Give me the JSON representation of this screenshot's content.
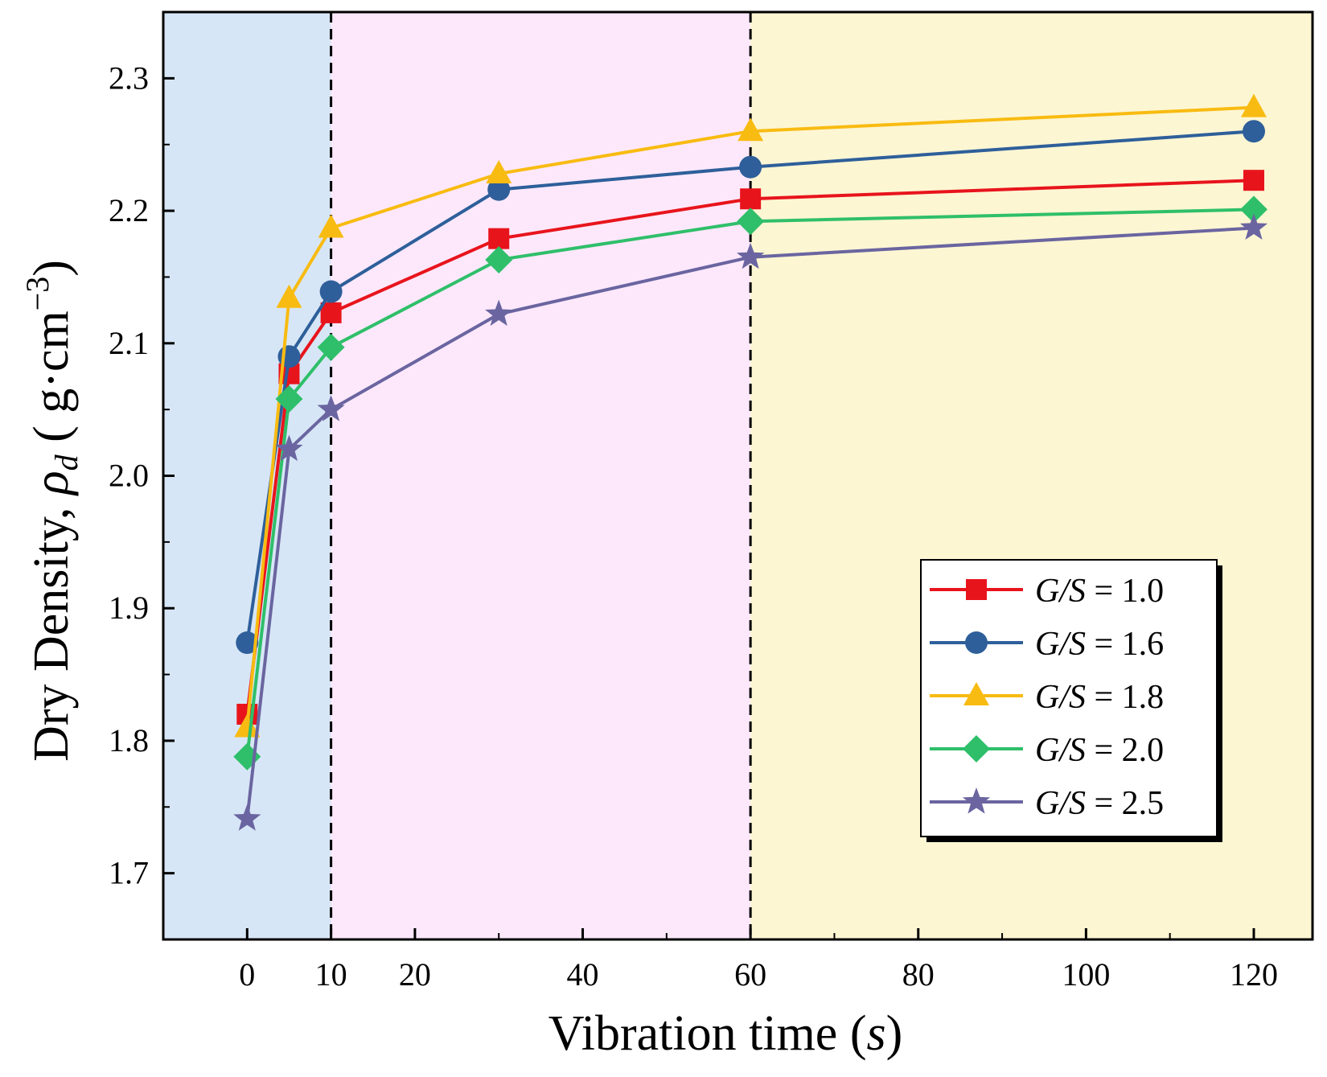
{
  "chart_data": {
    "type": "line",
    "title": "",
    "xlabel": "Vibration time (s)",
    "xlabel_main": "Vibration time (",
    "xlabel_unit": "s",
    "xlabel_close": ")",
    "ylabel": "Dry Density, ρd ( g·cm−3)",
    "ylabel_main": "Dry Density, ",
    "ylabel_symbol": "ρ",
    "ylabel_sub": "d",
    "ylabel_unit": " ( g·cm",
    "ylabel_exp": "−3",
    "ylabel_close": ")",
    "xlim": [
      -10,
      127
    ],
    "ylim": [
      1.65,
      2.35
    ],
    "xticks": [
      0,
      10,
      20,
      40,
      60,
      80,
      100,
      120
    ],
    "xtick_labels": [
      "0",
      "10",
      "20",
      "40",
      "60",
      "80",
      "100",
      "120"
    ],
    "yticks": [
      1.7,
      1.8,
      1.9,
      2.0,
      2.1,
      2.2,
      2.3
    ],
    "ytick_labels": [
      "1.7",
      "1.8",
      "1.9",
      "2.0",
      "2.1",
      "2.2",
      "2.3"
    ],
    "grid": false,
    "legend_position": "bottom-right",
    "regions": [
      {
        "x0": -10,
        "x1": 10,
        "color": "#d7e6f6"
      },
      {
        "x0": 10,
        "x1": 60,
        "color": "#fde8fb"
      },
      {
        "x0": 60,
        "x1": 127,
        "color": "#fdf6d3"
      }
    ],
    "divider_lines": [
      10,
      60
    ],
    "x": [
      0,
      5,
      10,
      30,
      60,
      120
    ],
    "series": [
      {
        "name": "G/S = 1.0",
        "legend_var": "G/S",
        "legend_val": " = 1.0",
        "marker": "square",
        "color": "#e8141c",
        "values": [
          1.82,
          2.077,
          2.123,
          2.179,
          2.209,
          2.223
        ]
      },
      {
        "name": "G/S = 1.6",
        "legend_var": "G/S",
        "legend_val": " = 1.6",
        "marker": "circle",
        "color": "#2e5f9a",
        "values": [
          1.874,
          2.09,
          2.139,
          2.216,
          2.233,
          2.26
        ]
      },
      {
        "name": "G/S = 1.8",
        "legend_var": "G/S",
        "legend_val": " = 1.8",
        "marker": "triangle",
        "color": "#f8bb11",
        "values": [
          1.81,
          2.134,
          2.187,
          2.228,
          2.26,
          2.278
        ]
      },
      {
        "name": "G/S = 2.0",
        "legend_var": "G/S",
        "legend_val": " = 2.0",
        "marker": "diamond",
        "color": "#2fbf6a",
        "values": [
          1.788,
          2.058,
          2.097,
          2.163,
          2.192,
          2.201
        ]
      },
      {
        "name": "G/S = 2.5",
        "legend_var": "G/S",
        "legend_val": " = 2.5",
        "marker": "star",
        "color": "#6a65a0",
        "values": [
          1.741,
          2.02,
          2.05,
          2.122,
          2.165,
          2.187
        ]
      }
    ]
  }
}
